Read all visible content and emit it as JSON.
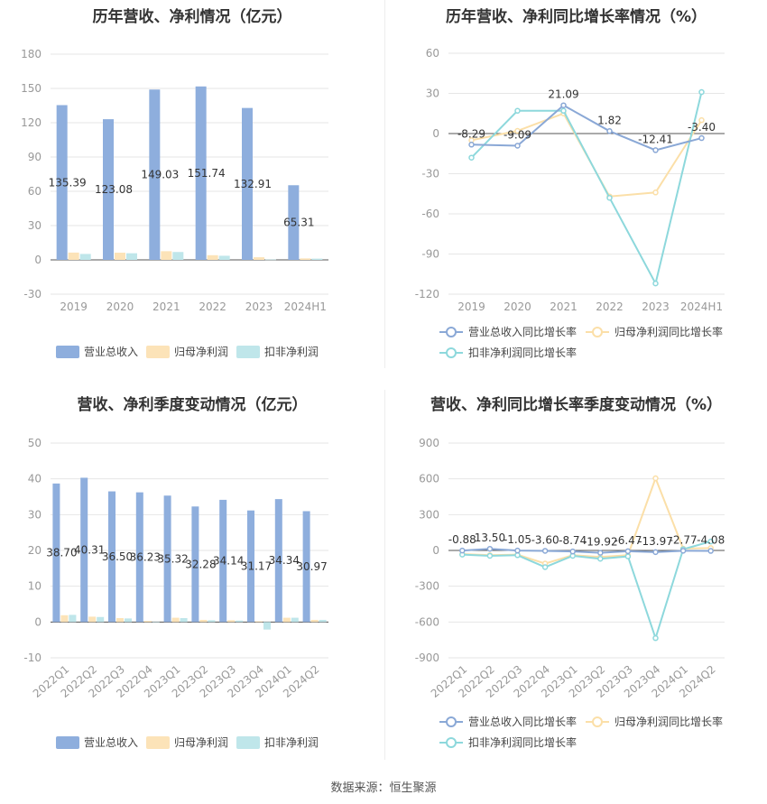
{
  "source_label": "数据来源：恒生聚源",
  "colors": {
    "revenue": "#8eaedd",
    "net_profit": "#fce3b8",
    "deducted_profit": "#bfe6ea",
    "rev_line": "#8aa8d6",
    "np_line": "#fbdfa8",
    "dp_line": "#8dd8dc"
  },
  "chart_data": [
    {
      "type": "bar",
      "title": "历年营收、净利情况（亿元）",
      "categories": [
        "2019",
        "2020",
        "2021",
        "2022",
        "2023",
        "2024H1"
      ],
      "ylim": [
        -30,
        180
      ],
      "yticks": [
        -30,
        0,
        30,
        60,
        90,
        120,
        150,
        180
      ],
      "series": [
        {
          "name": "营业总收入",
          "values": [
            135.39,
            123.08,
            149.03,
            151.74,
            132.91,
            65.31
          ],
          "labels": [
            "135.39",
            "123.08",
            "149.03",
            "151.74",
            "132.91",
            "65.31"
          ]
        },
        {
          "name": "归母净利润",
          "values": [
            6.4,
            6.3,
            7.6,
            4.1,
            2.3,
            1.3
          ]
        },
        {
          "name": "扣非净利润",
          "values": [
            5.2,
            5.8,
            6.9,
            3.6,
            0.3,
            1.1
          ]
        }
      ],
      "legend": "bottom"
    },
    {
      "type": "line",
      "title": "历年营收、净利同比增长率情况（%）",
      "categories": [
        "2019",
        "2020",
        "2021",
        "2022",
        "2023",
        "2024H1"
      ],
      "ylim": [
        -120,
        60
      ],
      "yticks": [
        -120,
        -90,
        -60,
        -30,
        0,
        30,
        60
      ],
      "series": [
        {
          "name": "营业总收入同比增长率",
          "values": [
            -8.29,
            -9.09,
            21.09,
            1.82,
            -12.41,
            -3.4
          ],
          "labels": [
            "-8.29",
            "-9.09",
            "21.09",
            "1.82",
            "-12.41",
            "-3.40"
          ]
        },
        {
          "name": "归母净利润同比增长率",
          "values": [
            -5,
            2,
            15,
            -47,
            -44,
            10
          ]
        },
        {
          "name": "扣非净利润同比增长率",
          "values": [
            -18,
            17,
            17,
            -48,
            -112,
            31
          ]
        }
      ],
      "legend": "bottom"
    },
    {
      "type": "bar",
      "title": "营收、净利季度变动情况（亿元）",
      "categories": [
        "2022Q1",
        "2022Q2",
        "2022Q3",
        "2022Q4",
        "2023Q1",
        "2023Q2",
        "2023Q3",
        "2023Q4",
        "2024Q1",
        "2024Q2"
      ],
      "ylim": [
        -10,
        50
      ],
      "yticks": [
        -10,
        0,
        10,
        20,
        30,
        40,
        50
      ],
      "series": [
        {
          "name": "营业总收入",
          "values": [
            38.7,
            40.31,
            36.5,
            36.23,
            35.32,
            32.28,
            34.14,
            31.17,
            34.34,
            30.97
          ],
          "labels": [
            "38.70",
            "40.31",
            "36.50",
            "36.23",
            "35.32",
            "32.28",
            "34.14",
            "31.17",
            "34.34",
            "30.97"
          ]
        },
        {
          "name": "归母净利润",
          "values": [
            1.9,
            1.5,
            1.1,
            0.3,
            1.2,
            0.6,
            0.5,
            0.2,
            1.2,
            0.6
          ]
        },
        {
          "name": "扣非净利润",
          "values": [
            2.0,
            1.4,
            1.0,
            0.1,
            1.1,
            0.5,
            0.4,
            -2.1,
            1.2,
            0.6
          ]
        }
      ],
      "legend": "bottom"
    },
    {
      "type": "line",
      "title": "营收、净利同比增长率季度变动情况（%）",
      "categories": [
        "2022Q1",
        "2022Q2",
        "2022Q3",
        "2022Q4",
        "2023Q1",
        "2023Q2",
        "2023Q3",
        "2023Q4",
        "2024Q1",
        "2024Q2"
      ],
      "ylim": [
        -900,
        900
      ],
      "yticks": [
        -900,
        -600,
        -300,
        0,
        300,
        600,
        900
      ],
      "series": [
        {
          "name": "营业总收入同比增长率",
          "values": [
            -0.88,
            13.5,
            -1.05,
            -3.6,
            -8.74,
            -19.92,
            -6.47,
            -13.97,
            -2.77,
            -4.08
          ],
          "labels": [
            "-0.88",
            "13.50",
            "-1.05",
            "-3.60",
            "-8.74",
            "-19.92",
            "-6.47",
            "-13.97",
            "-2.77",
            "-4.08"
          ]
        },
        {
          "name": "归母净利润同比增长率",
          "values": [
            -30,
            -40,
            -35,
            -110,
            -40,
            -55,
            -40,
            605,
            15,
            20
          ]
        },
        {
          "name": "扣非净利润同比增长率",
          "values": [
            -35,
            -45,
            -40,
            -140,
            -45,
            -70,
            -50,
            -735,
            10,
            75
          ]
        }
      ],
      "legend": "bottom"
    }
  ]
}
